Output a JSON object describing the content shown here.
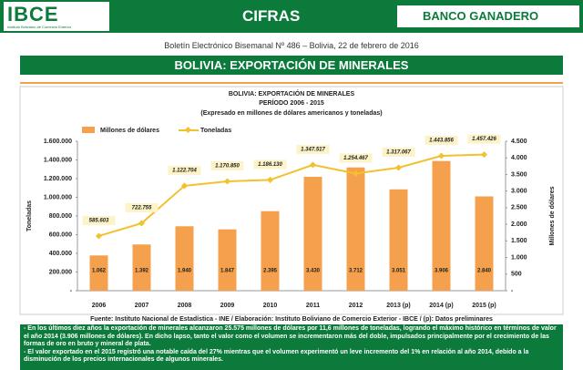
{
  "header": {
    "logo": "IBCE",
    "logo_subtitle": "Instituto Boliviano de Comercio Exterior",
    "section": "CIFRAS",
    "sponsor": "BANCO GANADERO",
    "bulletin": "Boletín Electrónico Bisemanal Nº 486 – Bolivia, 22 de febrero de 2016",
    "banner": "BOLIVIA: EXPORTACIÓN DE MINERALES"
  },
  "chart_data": {
    "type": "bar",
    "title": "BOLIVIA: EXPORTACIÓN DE MINERALES",
    "subtitle": "PERÍODO 2006 - 2015",
    "note": "(Expresado en millones de dólares americanos y toneladas)",
    "ylabel": "Toneladas",
    "y2label": "Millones de dólares",
    "legend": "top",
    "categories": [
      "2006",
      "2007",
      "2008",
      "2009",
      "2010",
      "2011",
      "2012",
      "2013 (p)",
      "2014 (p)",
      "2015 (p)"
    ],
    "series": [
      {
        "name": "Millones de dólares",
        "type": "bar",
        "axis": "y2",
        "color": "#f5a04c",
        "values": [
          1062,
          1392,
          1940,
          1847,
          2395,
          3430,
          3712,
          3051,
          3906,
          2840
        ],
        "value_labels": [
          "1.062",
          "1.392",
          "1.940",
          "1.847",
          "2.395",
          "3.430",
          "3.712",
          "3.051",
          "3.906",
          "2.840"
        ]
      },
      {
        "name": "Toneladas",
        "type": "line",
        "axis": "y",
        "color": "#f2c12e",
        "values": [
          585603,
          722755,
          1122704,
          1170850,
          1186130,
          1347517,
          1254467,
          1317067,
          1443856,
          1457426
        ],
        "value_labels": [
          "585.603",
          "722.755",
          "1.122.704",
          "1.170.850",
          "1.186.130",
          "1.347.517",
          "1.254.467",
          "1.317.067",
          "1.443.856",
          "1.457.426"
        ]
      }
    ],
    "ylim": [
      0,
      1600000
    ],
    "yticks": [
      {
        "value": 0,
        "label": "-"
      },
      {
        "value": 200000,
        "label": "200.000"
      },
      {
        "value": 400000,
        "label": "400.000"
      },
      {
        "value": 600000,
        "label": "600.000"
      },
      {
        "value": 800000,
        "label": "800.000"
      },
      {
        "value": 1000000,
        "label": "1.000.000"
      },
      {
        "value": 1200000,
        "label": "1.200.000"
      },
      {
        "value": 1400000,
        "label": "1.400.000"
      },
      {
        "value": 1600000,
        "label": "1.600.000"
      }
    ],
    "y2lim": [
      0,
      4500
    ],
    "y2ticks": [
      {
        "value": 0,
        "label": "-"
      },
      500,
      {
        "value": 1000,
        "label": "1.000"
      },
      {
        "value": 1500,
        "label": "1.500"
      },
      {
        "value": 2000,
        "label": "2.000"
      },
      {
        "value": 2500,
        "label": "2.500"
      },
      {
        "value": 3000,
        "label": "3.000"
      },
      {
        "value": 3500,
        "label": "3.500"
      },
      {
        "value": 4000,
        "label": "4.000"
      },
      {
        "value": 4500,
        "label": "4.500"
      }
    ]
  },
  "footer": {
    "source": "Fuente: Instituto Nacional de Estadística - INE / Elaboración: Instituto Boliviano de Comercio Exterior - IBCE / (p): Datos preliminares",
    "notes": [
      "- En los últimos diez años la exportación de minerales alcanzaron 25.575 millones de dólares por 11,6 millones de toneladas, logrando el máximo histórico en términos de valor el año 2014 (3.906 millones de dólares). En dicho lapso, tanto el valor como el volumen se incrementaron más del doble, impulsados principalmente por el crecimiento de las formas de oro en bruto y mineral de plata.",
      "- El valor exportado en el 2015 registró una notable caída del 27% mientras que el volumen experimentó un leve incremento del 1% en relación al año 2014, debido a la disminución de los precios internacionales de algunos minerales."
    ]
  }
}
